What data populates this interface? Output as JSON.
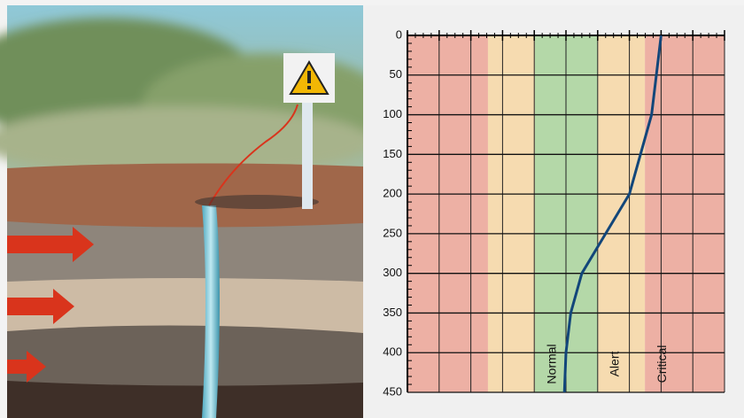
{
  "chart_data": {
    "type": "line",
    "yticks": [
      0,
      50,
      100,
      150,
      200,
      250,
      300,
      350,
      400,
      450
    ],
    "ylim": [
      0,
      450
    ],
    "y_inverted": true,
    "xlim": [
      0,
      10
    ],
    "xticks": [
      0,
      1,
      2,
      3,
      4,
      5,
      6,
      7,
      8,
      9,
      10
    ],
    "grid": true,
    "zones": [
      {
        "from": 0,
        "to": 2.54,
        "color": "#eca497"
      },
      {
        "from": 2.54,
        "to": 4.02,
        "color": "#f7d7a4"
      },
      {
        "from": 4.02,
        "to": 6.0,
        "color": "#a9d39b",
        "label": "Normal"
      },
      {
        "from": 6.0,
        "to": 7.49,
        "color": "#f7d7a4",
        "label": "Alert"
      },
      {
        "from": 7.49,
        "to": 10,
        "color": "#eca497",
        "label": "Critical"
      }
    ],
    "series": [
      {
        "color": "#12467a",
        "y": [
          0,
          50,
          100,
          150,
          200,
          250,
          300,
          350,
          400,
          450
        ],
        "x": [
          8.0,
          7.85,
          7.7,
          7.35,
          7.0,
          6.25,
          5.5,
          5.15,
          5.0,
          4.95
        ]
      }
    ]
  }
}
